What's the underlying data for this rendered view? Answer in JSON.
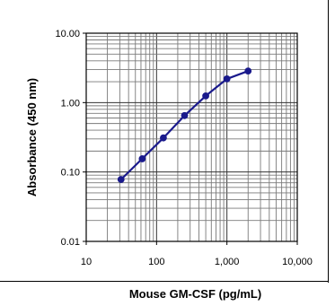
{
  "chart_data": {
    "type": "line",
    "title": "",
    "xlabel": "Mouse GM-CSF (pg/mL)",
    "ylabel": "Absorbance (450 nm)",
    "x_scale": "log",
    "y_scale": "log",
    "xlim": [
      10,
      10000
    ],
    "ylim": [
      0.01,
      10
    ],
    "x_ticks": [
      "10",
      "100",
      "1,000",
      "10,000"
    ],
    "y_ticks": [
      "10.00",
      "1.00",
      "0.10",
      "0.01"
    ],
    "grid": true,
    "legend": "none",
    "series": [
      {
        "color": "#1a1a8c",
        "x": [
          31.25,
          62.5,
          125,
          250,
          500,
          1000,
          2000
        ],
        "y": [
          0.078,
          0.155,
          0.31,
          0.65,
          1.25,
          2.2,
          2.85
        ]
      }
    ]
  }
}
